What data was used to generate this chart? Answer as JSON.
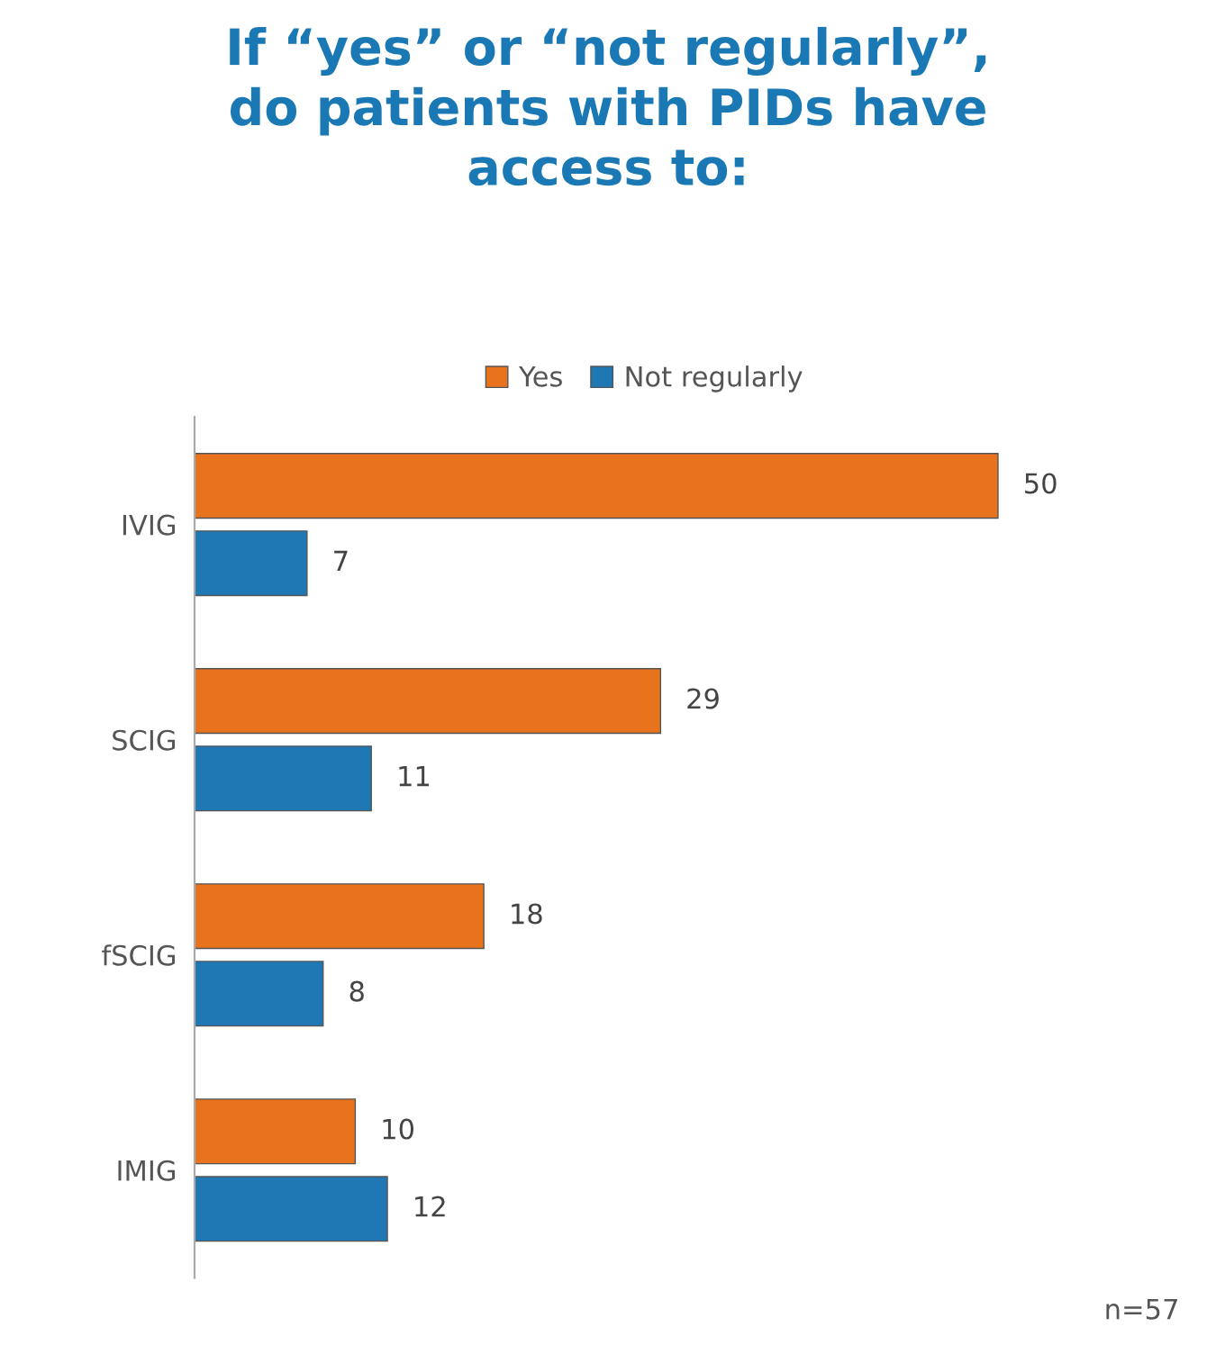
{
  "chart_data": {
    "type": "bar",
    "orientation": "horizontal",
    "title": "If “yes” or “not regularly”,\ndo patients with PIDs have\naccess to:",
    "categories": [
      "IVIG",
      "SCIG",
      "fSCIG",
      "IMIG"
    ],
    "series": [
      {
        "name": "Yes",
        "color": "#e8731c",
        "values": [
          50,
          29,
          18,
          10
        ]
      },
      {
        "name": "Not regularly",
        "color": "#1f78b4",
        "values": [
          7,
          11,
          8,
          12
        ]
      }
    ],
    "data_labels": true,
    "legend": "top",
    "grid": false,
    "tick_labels": "y",
    "annotations": [
      "n=57"
    ]
  }
}
